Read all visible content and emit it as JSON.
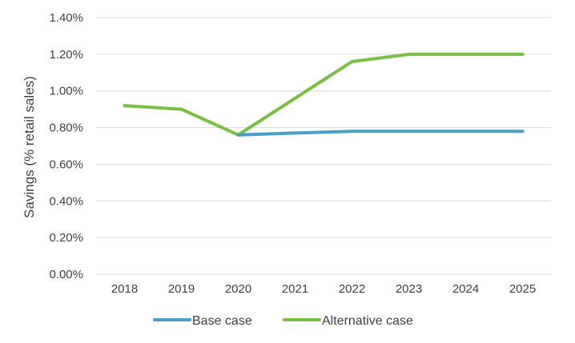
{
  "chart_data": {
    "type": "line",
    "title": "",
    "xlabel": "",
    "ylabel": "Savings (% retail sales)",
    "x": [
      "2018",
      "2019",
      "2020",
      "2021",
      "2022",
      "2023",
      "2024",
      "2025"
    ],
    "y_ticks": [
      "0.00%",
      "0.20%",
      "0.40%",
      "0.60%",
      "0.80%",
      "1.00%",
      "1.20%",
      "1.40%"
    ],
    "ylim": [
      0,
      1.4
    ],
    "y_unit": "%",
    "grid": "horizontal",
    "legend_position": "bottom",
    "series": [
      {
        "name": "Base case",
        "color": "#4a9cc9",
        "values": [
          null,
          null,
          0.76,
          0.77,
          0.78,
          0.78,
          0.78,
          0.78
        ]
      },
      {
        "name": "Alternative case",
        "color": "#77c043",
        "values": [
          0.92,
          0.9,
          0.76,
          0.96,
          1.16,
          1.2,
          1.2,
          1.2
        ]
      }
    ]
  }
}
